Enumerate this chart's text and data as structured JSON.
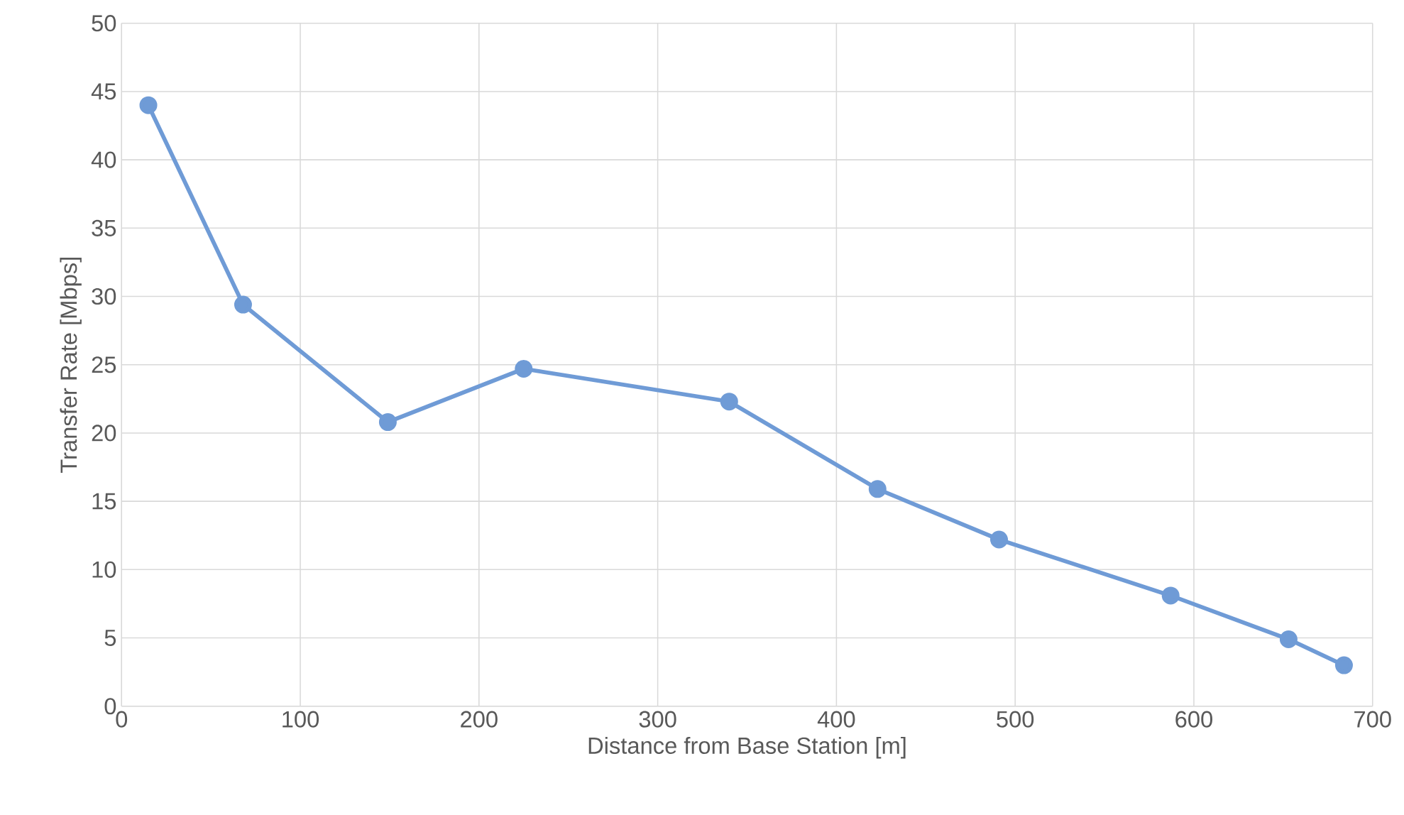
{
  "chart_data": {
    "type": "line",
    "xlabel": "Distance from Base Station [m]",
    "ylabel": "Transfer Rate [Mbps]",
    "x": [
      15,
      68,
      149,
      225,
      340,
      423,
      491,
      587,
      653,
      684
    ],
    "series": [
      {
        "color": "#6f9bd6",
        "values": [
          44.0,
          29.4,
          20.8,
          24.7,
          22.3,
          15.9,
          12.2,
          8.1,
          4.9,
          3.0
        ]
      }
    ],
    "xlim": [
      0,
      700
    ],
    "xticks": [
      0,
      100,
      200,
      300,
      400,
      500,
      600,
      700
    ],
    "ylim": [
      0,
      50
    ],
    "yticks": [
      0,
      5,
      10,
      15,
      20,
      25,
      30,
      35,
      40,
      45,
      50
    ],
    "grid": true,
    "marker": "circle",
    "line_style": "solid"
  }
}
